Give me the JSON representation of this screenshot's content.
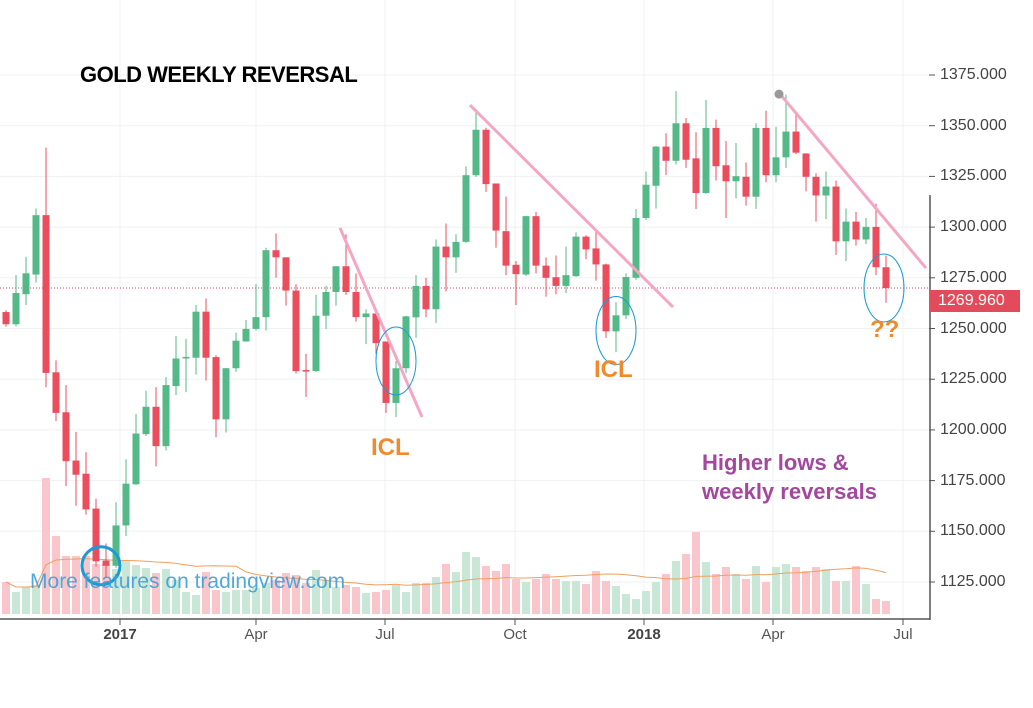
{
  "title": "GOLD WEEKLY REVERSAL",
  "watermark": "More features on tradingview.com",
  "annotations": {
    "icl_1": "ICL",
    "icl_2": "ICL",
    "question": "??",
    "note_line1": "Higher lows &",
    "note_line2": "weekly reversals"
  },
  "colors": {
    "up": "#53b987",
    "down": "#eb4d5c",
    "vol_up": "#c9e7d7",
    "vol_down": "#f9c6cb",
    "trend": "#f4a7c3",
    "circle": "#1a9ad6",
    "ma": "#f0a060",
    "last": "#e24b5b"
  },
  "chart_data": {
    "type": "candlestick",
    "title": "GOLD WEEKLY REVERSAL",
    "xlabel": "",
    "ylabel": "",
    "ylim": [
      1110,
      1385
    ],
    "grid": true,
    "y_ticks": [
      "1375.000",
      "1350.000",
      "1325.000",
      "1300.000",
      "1275.000",
      "1250.000",
      "1225.000",
      "1200.000",
      "1175.000",
      "1150.000",
      "1125.000"
    ],
    "y_tick_values": [
      1375,
      1350,
      1325,
      1300,
      1275,
      1250,
      1225,
      1200,
      1175,
      1150,
      1125
    ],
    "last_price": 1269.96,
    "last_price_label": "1269.960",
    "x_ticks": [
      {
        "label": "2017",
        "week": 12.4,
        "bold": true
      },
      {
        "label": "Apr",
        "week": 26,
        "bold": false
      },
      {
        "label": "Jul",
        "week": 38.9,
        "bold": false
      },
      {
        "label": "Oct",
        "week": 51.9,
        "bold": false
      },
      {
        "label": "2018",
        "week": 64.8,
        "bold": true
      },
      {
        "label": "Apr",
        "week": 77.7,
        "bold": false
      },
      {
        "label": "Jul",
        "week": 90.7,
        "bold": false
      }
    ],
    "ohlc": [
      [
        1258.1,
        1259,
        1251,
        1252.1
      ],
      [
        1252.1,
        1276.3,
        1251,
        1267.5
      ],
      [
        1266.9,
        1285.4,
        1261.6,
        1277.2
      ],
      [
        1276.6,
        1309.2,
        1272.7,
        1305.9
      ],
      [
        1305.9,
        1339.2,
        1221.1,
        1228.1
      ],
      [
        1228.4,
        1234.3,
        1204.3,
        1208.4
      ],
      [
        1208.7,
        1222.1,
        1172.3,
        1184.6
      ],
      [
        1184.9,
        1199,
        1162.6,
        1177.9
      ],
      [
        1178.4,
        1189,
        1158.2,
        1160.8
      ],
      [
        1161.2,
        1166.1,
        1132.6,
        1135.2
      ],
      [
        1135.6,
        1144,
        1127.3,
        1133
      ],
      [
        1133,
        1164.3,
        1132,
        1152.9
      ],
      [
        1152.9,
        1185.5,
        1147.6,
        1173.5
      ],
      [
        1173.2,
        1207.9,
        1172.8,
        1198.2
      ],
      [
        1197.9,
        1219.3,
        1197,
        1211.4
      ],
      [
        1211.4,
        1221.1,
        1182,
        1192
      ],
      [
        1192,
        1226,
        1189.9,
        1222.1
      ],
      [
        1221.6,
        1246.3,
        1217.2,
        1235.2
      ],
      [
        1235.2,
        1244.9,
        1218.6,
        1236
      ],
      [
        1235.6,
        1261.6,
        1227.3,
        1258.3
      ],
      [
        1258.3,
        1264.8,
        1224.3,
        1235.6
      ],
      [
        1235.9,
        1236.8,
        1196.4,
        1205.2
      ],
      [
        1205.2,
        1230.6,
        1198.7,
        1230.4
      ],
      [
        1230.4,
        1248,
        1228.6,
        1244
      ],
      [
        1243.6,
        1254.2,
        1243.5,
        1249.8
      ],
      [
        1249.8,
        1271.9,
        1249,
        1255.6
      ],
      [
        1255.6,
        1289.8,
        1249,
        1288.6
      ],
      [
        1288.6,
        1296.9,
        1275,
        1285.1
      ],
      [
        1285.1,
        1285.1,
        1261.3,
        1268.7
      ],
      [
        1268.7,
        1271.9,
        1227.8,
        1229
      ],
      [
        1229.5,
        1237.5,
        1216.3,
        1229
      ],
      [
        1229,
        1266.6,
        1228.6,
        1256.3
      ],
      [
        1256.3,
        1271,
        1249.8,
        1268
      ],
      [
        1268,
        1280.7,
        1261.3,
        1280.7
      ],
      [
        1280.7,
        1296.5,
        1266.6,
        1268
      ],
      [
        1268,
        1277.2,
        1253.4,
        1255.6
      ],
      [
        1255.6,
        1259.5,
        1242.3,
        1257.4
      ],
      [
        1257.4,
        1259.5,
        1237.5,
        1242.8
      ],
      [
        1243.6,
        1243.6,
        1208.4,
        1213.3
      ],
      [
        1213.3,
        1234,
        1206.3,
        1230.4
      ],
      [
        1230.4,
        1256.3,
        1228,
        1256
      ],
      [
        1255.5,
        1276.3,
        1245.4,
        1271
      ],
      [
        1271,
        1275,
        1255.6,
        1259.5
      ],
      [
        1259.5,
        1293.9,
        1252.8,
        1290.4
      ],
      [
        1290.4,
        1301.8,
        1268.3,
        1285.1
      ],
      [
        1285.1,
        1296.5,
        1277.5,
        1292.7
      ],
      [
        1292.7,
        1330,
        1292.2,
        1325.6
      ],
      [
        1325.6,
        1358.3,
        1324.7,
        1348
      ],
      [
        1348,
        1349,
        1317.4,
        1321.2
      ],
      [
        1321.5,
        1321.5,
        1289.8,
        1298.3
      ],
      [
        1298,
        1315,
        1276.3,
        1281
      ],
      [
        1281.4,
        1283.3,
        1261.6,
        1276.8
      ],
      [
        1276.6,
        1305.6,
        1276,
        1305.4
      ],
      [
        1305.4,
        1307.5,
        1277.2,
        1281
      ],
      [
        1281,
        1285.1,
        1265.7,
        1275
      ],
      [
        1275.3,
        1286,
        1266.9,
        1271
      ],
      [
        1271,
        1290.4,
        1267.5,
        1276.3
      ],
      [
        1275.8,
        1297.4,
        1275.5,
        1295.3
      ],
      [
        1295.3,
        1296,
        1284.2,
        1289
      ],
      [
        1289.5,
        1299.2,
        1273.6,
        1281.6
      ],
      [
        1281.6,
        1282,
        1245.4,
        1248.6
      ],
      [
        1248.6,
        1263,
        1238.4,
        1256.5
      ],
      [
        1256.5,
        1277.2,
        1254.6,
        1275.4
      ],
      [
        1275,
        1308.9,
        1274,
        1304.5
      ],
      [
        1304.5,
        1327.4,
        1303.5,
        1320.9
      ],
      [
        1320.4,
        1340,
        1309.2,
        1339.7
      ],
      [
        1339.7,
        1346.3,
        1325.6,
        1332.7
      ],
      [
        1332.7,
        1367.1,
        1330.9,
        1351.2
      ],
      [
        1351.2,
        1353.8,
        1329.2,
        1333.2
      ],
      [
        1333.9,
        1346.8,
        1308.9,
        1316.8
      ],
      [
        1316.8,
        1362.7,
        1316.5,
        1348.9
      ],
      [
        1348.9,
        1353,
        1323,
        1330
      ],
      [
        1330.5,
        1342.4,
        1304.5,
        1322.6
      ],
      [
        1322.6,
        1341.5,
        1314.2,
        1325.1
      ],
      [
        1324.8,
        1331.8,
        1310.6,
        1315
      ],
      [
        1315,
        1351.2,
        1308.9,
        1348.9
      ],
      [
        1348.9,
        1357.4,
        1322.1,
        1325.6
      ],
      [
        1325.6,
        1349.4,
        1322.1,
        1334.4
      ],
      [
        1334.4,
        1365.3,
        1329.2,
        1347.1
      ],
      [
        1347.1,
        1356.5,
        1336,
        1336.7
      ],
      [
        1336.3,
        1336.5,
        1317.7,
        1324.8
      ],
      [
        1324.8,
        1326.5,
        1302.7,
        1315.6
      ],
      [
        1315.6,
        1327.4,
        1304,
        1320
      ],
      [
        1320,
        1323,
        1286.3,
        1293
      ],
      [
        1293,
        1309.2,
        1283.3,
        1302.7
      ],
      [
        1302.7,
        1307.5,
        1290.9,
        1293.9
      ],
      [
        1293.9,
        1304.5,
        1291.6,
        1300.1
      ],
      [
        1300.1,
        1311.5,
        1276.3,
        1280.2
      ],
      [
        1280.2,
        1286,
        1262.7,
        1269.96
      ]
    ],
    "volume_relative": [
      32,
      22,
      27,
      29,
      136,
      78,
      58,
      58,
      58,
      50,
      50,
      45,
      53,
      49,
      46,
      41,
      45,
      34,
      22,
      19,
      42,
      24,
      22,
      24,
      24,
      26,
      31,
      34,
      41,
      39,
      31,
      44,
      34,
      27,
      29,
      27,
      21,
      22,
      24,
      29,
      22,
      31,
      31,
      37,
      50,
      42,
      62,
      57,
      48,
      43,
      50,
      35,
      32,
      35,
      40,
      35,
      33,
      33,
      30,
      43,
      33,
      28,
      20,
      15,
      23,
      32,
      40,
      53,
      60,
      82,
      52,
      40,
      47,
      40,
      35,
      48,
      32,
      47,
      50,
      47,
      43,
      47,
      45,
      33,
      33,
      48,
      30,
      15,
      13
    ],
    "volume_ma_period": 20,
    "trendlines": [
      {
        "from": [
          34.4,
          1299.6
        ],
        "to": [
          42.6,
          1206.4
        ]
      },
      {
        "from": [
          47.4,
          1360.2
        ],
        "to": [
          67.7,
          1260.6
        ]
      },
      {
        "from": [
          78.4,
          1365.6
        ],
        "to": [
          93,
          1279.8
        ]
      }
    ],
    "marker_dot": [
      78.3,
      1365.6
    ],
    "highlights": [
      {
        "week": 10.5,
        "price": 1133,
        "kind": "circle"
      },
      {
        "week": 40,
        "price": 1234,
        "kind": "ellipse"
      },
      {
        "week": 62,
        "price": 1249,
        "kind": "ellipse"
      },
      {
        "week": 88.8,
        "price": 1270,
        "kind": "ellipse"
      }
    ]
  }
}
